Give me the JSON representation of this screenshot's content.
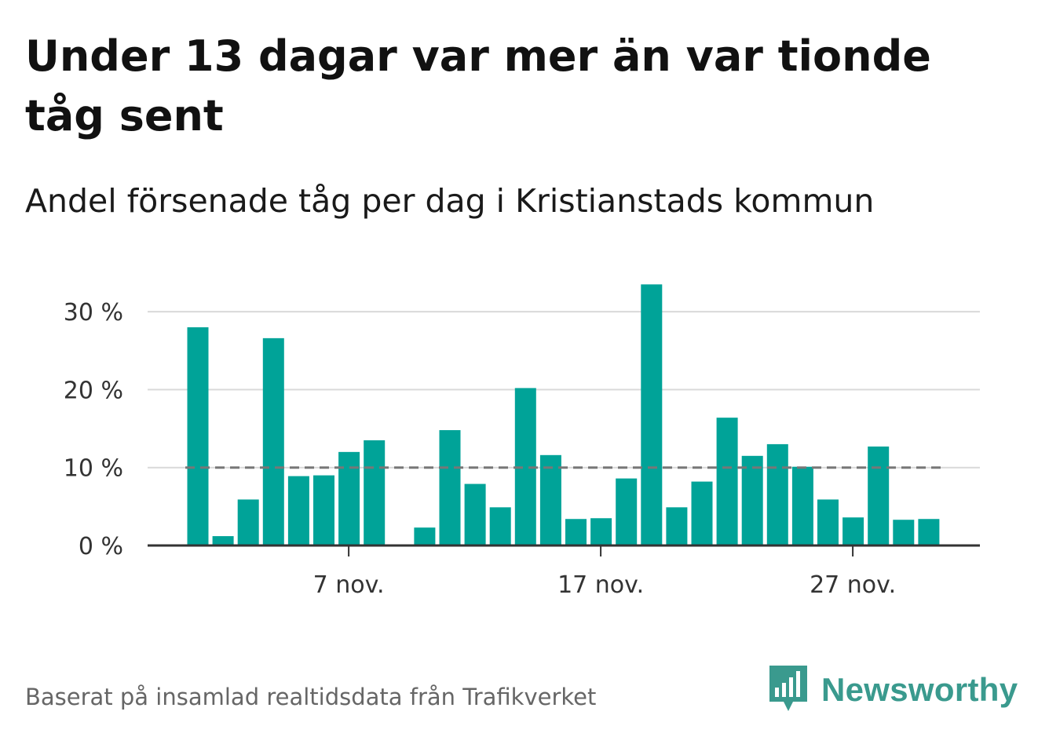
{
  "title": "Under 13 dagar var mer än var tionde tåg sent",
  "subtitle": "Andel försenade tåg per dag i Kristianstads kommun",
  "source": "Baserat på insamlad realtidsdata från Trafikverket",
  "brand": {
    "name": "Newsworthy",
    "icon": "newsworthy-logo-icon",
    "color": "#3a9a8e"
  },
  "colors": {
    "bar": "#00a398",
    "grid": "#d9d9d9",
    "axis": "#333333",
    "reference": "#777777"
  },
  "chart_data": {
    "type": "bar",
    "title": "Under 13 dagar var mer än var tionde tåg sent",
    "subtitle": "Andel försenade tåg per dag i Kristianstads kommun",
    "x_type": "date",
    "categories": [
      "2023-11-01",
      "2023-11-02",
      "2023-11-03",
      "2023-11-04",
      "2023-11-05",
      "2023-11-06",
      "2023-11-07",
      "2023-11-08",
      "2023-11-09",
      "2023-11-10",
      "2023-11-11",
      "2023-11-12",
      "2023-11-13",
      "2023-11-14",
      "2023-11-15",
      "2023-11-16",
      "2023-11-17",
      "2023-11-18",
      "2023-11-19",
      "2023-11-20",
      "2023-11-21",
      "2023-11-22",
      "2023-11-23",
      "2023-11-24",
      "2023-11-25",
      "2023-11-26",
      "2023-11-27",
      "2023-11-28",
      "2023-11-29",
      "2023-11-30"
    ],
    "values": [
      28.0,
      1.2,
      5.9,
      26.6,
      8.9,
      9.0,
      12.0,
      13.5,
      null,
      2.3,
      14.8,
      7.9,
      4.9,
      20.2,
      11.6,
      3.4,
      3.5,
      8.6,
      33.5,
      4.9,
      8.2,
      16.4,
      11.5,
      13.0,
      10.1,
      5.9,
      3.6,
      12.7,
      3.3,
      3.4
    ],
    "unit": "%",
    "ylim": [
      0,
      35
    ],
    "yticks": [
      0,
      10,
      20,
      30
    ],
    "ytick_labels": [
      "0 %",
      "10 %",
      "20 %",
      "30 %"
    ],
    "xticks": [
      "2023-11-07",
      "2023-11-17",
      "2023-11-27"
    ],
    "xtick_labels": [
      "7 nov.",
      "17 nov.",
      "27 nov."
    ],
    "reference_line": {
      "value": 10,
      "style": "dashed"
    },
    "grid": true,
    "legend": false
  }
}
